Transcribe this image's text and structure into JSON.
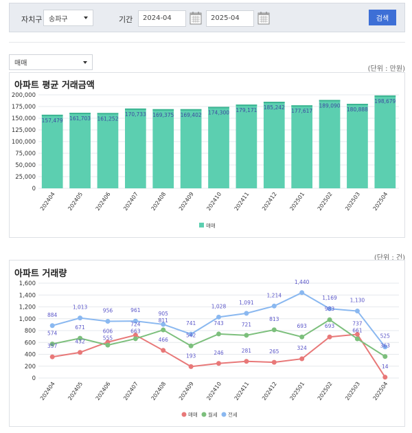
{
  "filter": {
    "district_label": "자치구",
    "district_value": "송파구",
    "period_label": "기간",
    "start": "2024-04",
    "end": "2025-04",
    "search_label": "검색"
  },
  "type_select": {
    "value": "매매"
  },
  "colors": {
    "bar": "#5ccfb0",
    "bar_top": "#3bb592",
    "red": "#e87878",
    "green": "#7cbf7c",
    "blue": "#8ab8f0",
    "label": "#5a56c8",
    "button": "#3d6fd6"
  },
  "chart_data": [
    {
      "type": "bar",
      "title": "아파트 평균 거래금액",
      "unit": "(단위 : 만원)",
      "categories": [
        "202404",
        "202405",
        "202406",
        "202407",
        "202408",
        "202409",
        "202410",
        "202411",
        "202412",
        "202501",
        "202502",
        "202503",
        "202504"
      ],
      "series": [
        {
          "name": "매매",
          "values": [
            157479,
            161703,
            161252,
            170733,
            169375,
            169402,
            174300,
            179171,
            185242,
            177617,
            189090,
            180888,
            198679
          ]
        }
      ],
      "value_labels": [
        "157,479",
        "161,703",
        "161,252",
        "170,733",
        "169,375",
        "169,402",
        "174,300",
        "179,171",
        "185,242",
        "177,617",
        "189,090",
        "180,888",
        "198,679"
      ],
      "ylim": [
        0,
        200000
      ],
      "yticks": [
        "0",
        "25,000",
        "50,000",
        "75,000",
        "100,000",
        "125,000",
        "150,000",
        "175,000",
        "200,000"
      ],
      "grid": true,
      "legend": "bottom"
    },
    {
      "type": "line",
      "title": "아파트 거래량",
      "unit": "(단위 : 건)",
      "categories": [
        "202404",
        "202405",
        "202406",
        "202407",
        "202408",
        "202409",
        "202410",
        "202411",
        "202412",
        "202501",
        "202502",
        "202503",
        "202504"
      ],
      "series": [
        {
          "name": "매매",
          "values": [
            357,
            432,
            606,
            724,
            466,
            193,
            246,
            281,
            265,
            324,
            693,
            737,
            14
          ]
        },
        {
          "name": "월세",
          "values": [
            574,
            671,
            555,
            663,
            811,
            542,
            743,
            721,
            813,
            693,
            983,
            661,
            363
          ]
        },
        {
          "name": "전세",
          "values": [
            884,
            1013,
            956,
            961,
            905,
            741,
            1028,
            1091,
            1214,
            1440,
            1169,
            1130,
            525
          ]
        }
      ],
      "ylim": [
        0,
        1600
      ],
      "yticks": [
        "0",
        "200",
        "400",
        "600",
        "800",
        "1,000",
        "1,200",
        "1,400",
        "1,600"
      ],
      "grid": true,
      "legend": "bottom"
    }
  ]
}
